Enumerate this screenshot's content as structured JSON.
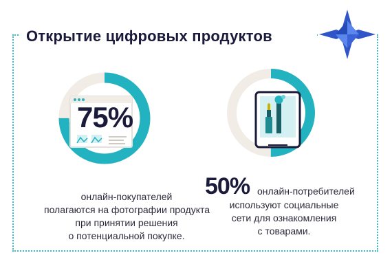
{
  "title": "Открытие цифровых продуктов",
  "colors": {
    "accent": "#22b2c0",
    "ring_track": "#f1ede6",
    "dark": "#1a1a3a",
    "logo_blue": "#2f55c8"
  },
  "icons": {
    "logo": "star-compass-icon",
    "photo_browser": "browser-photo-icon",
    "social_phone": "phone-cosmetics-icon"
  },
  "stat1": {
    "percent": "75%",
    "ring_fill_fraction": 0.75,
    "caption": [
      "онлайн-покупателей",
      "полагаются на фотографии продукта",
      "при принятии решения",
      "о потенциальной покупке."
    ]
  },
  "stat2": {
    "percent": "50%",
    "ring_fill_fraction": 0.5,
    "caption_first": "онлайн-потребителей",
    "caption": [
      "используют социальные",
      "сети для ознакомления",
      "с товарами."
    ]
  }
}
